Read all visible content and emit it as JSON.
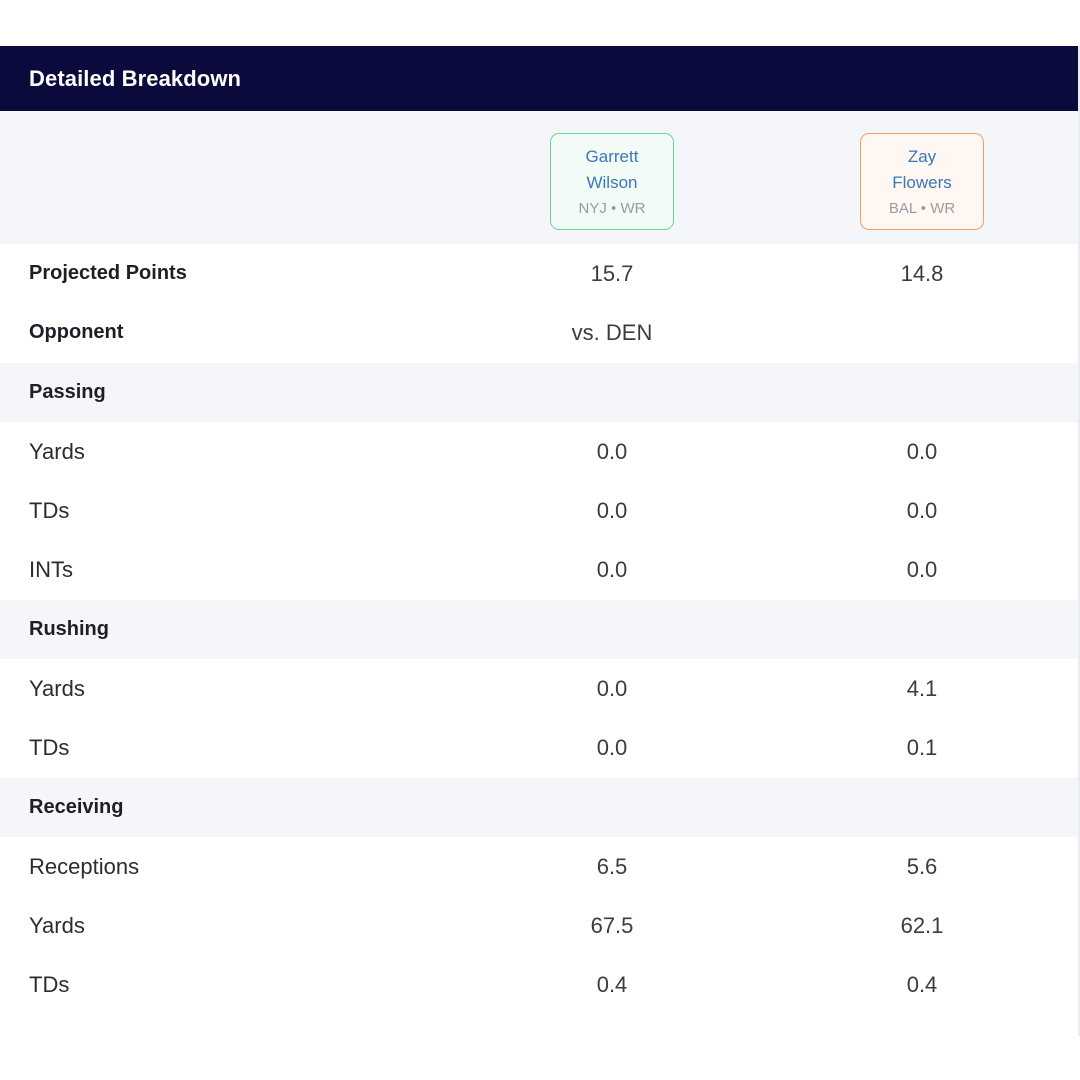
{
  "header": {
    "title": "Detailed Breakdown"
  },
  "players": [
    {
      "first_name": "Garrett",
      "last_name": "Wilson",
      "meta": "NYJ • WR",
      "accent": "#6cd49a"
    },
    {
      "first_name": "Zay",
      "last_name": "Flowers",
      "meta": "BAL • WR",
      "accent": "#f0a06c"
    }
  ],
  "rows": {
    "projected_points": {
      "label": "Projected Points",
      "p1": "15.7",
      "p2": "14.8"
    },
    "opponent": {
      "label": "Opponent",
      "p1": "vs. DEN",
      "p2": ""
    },
    "passing": {
      "section": "Passing",
      "yards": {
        "label": "Yards",
        "p1": "0.0",
        "p2": "0.0"
      },
      "tds": {
        "label": "TDs",
        "p1": "0.0",
        "p2": "0.0"
      },
      "ints": {
        "label": "INTs",
        "p1": "0.0",
        "p2": "0.0"
      }
    },
    "rushing": {
      "section": "Rushing",
      "yards": {
        "label": "Yards",
        "p1": "0.0",
        "p2": "4.1"
      },
      "tds": {
        "label": "TDs",
        "p1": "0.0",
        "p2": "0.1"
      }
    },
    "receiving": {
      "section": "Receiving",
      "receptions": {
        "label": "Receptions",
        "p1": "6.5",
        "p2": "5.6"
      },
      "yards": {
        "label": "Yards",
        "p1": "67.5",
        "p2": "62.1"
      },
      "tds": {
        "label": "TDs",
        "p1": "0.4",
        "p2": "0.4"
      }
    }
  },
  "colors": {
    "header_bg": "#0a0a3c",
    "section_bg": "#f5f6f9",
    "player_name": "#3a78b8"
  }
}
